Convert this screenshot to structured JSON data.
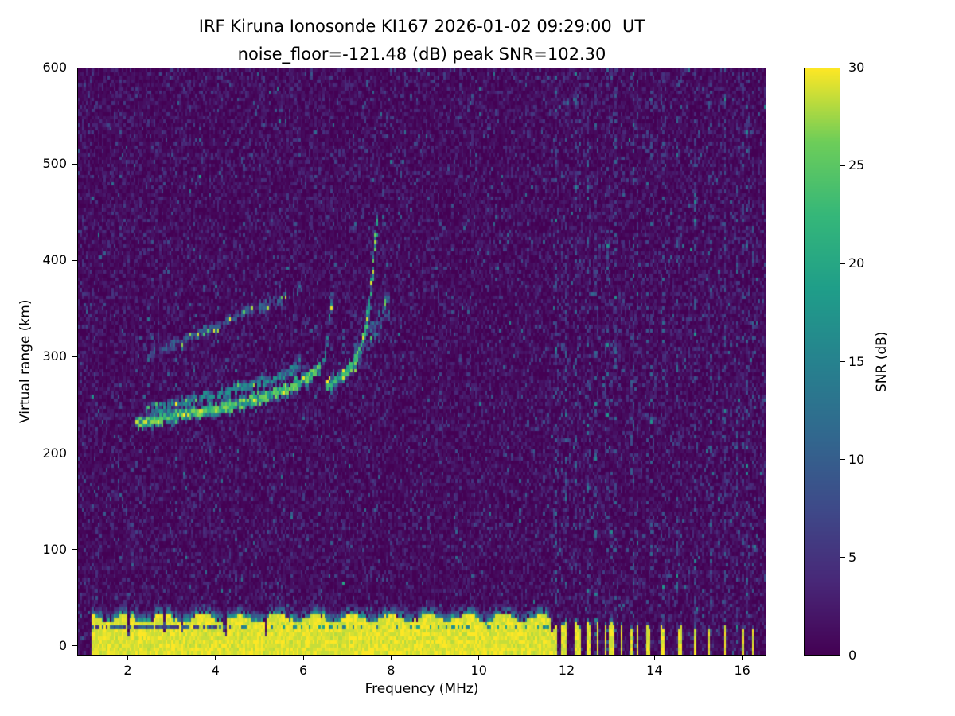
{
  "chart_data": {
    "type": "heatmap",
    "title_line1": "IRF Kiruna Ionosonde KI167 2026-01-02 09:29:00  UT",
    "title_line2": "noise_floor=-121.48 (dB) peak SNR=102.30",
    "station": "IRF Kiruna Ionosonde KI167",
    "timestamp_ut": "2026-01-02 09:29:00",
    "noise_floor_db": -121.48,
    "peak_snr_db": 102.3,
    "xlabel": "Frequency (MHz)",
    "ylabel": "Virtual range (km)",
    "xlim": [
      0.85,
      16.55
    ],
    "ylim": [
      -10,
      600
    ],
    "xticks": [
      2,
      4,
      6,
      8,
      10,
      12,
      14,
      16
    ],
    "yticks": [
      0,
      100,
      200,
      300,
      400,
      500,
      600
    ],
    "grid": false,
    "colorbar": {
      "label": "SNR (dB)",
      "min": 0,
      "max": 30,
      "ticks": [
        0,
        5,
        10,
        15,
        20,
        25,
        30
      ],
      "colormap": "viridis"
    },
    "features": {
      "background_noise_mean_db": 1.7,
      "ground_echo": {
        "snr_db": 30,
        "top_km": 30,
        "band_freq_mhz": [
          1.15,
          11.65
        ],
        "comb_freq_mhz": [
          11.65,
          13.25
        ],
        "sparse_stripes_mhz": [
          13.45,
          13.6,
          13.85,
          14.15,
          14.55,
          14.9,
          15.25,
          15.6,
          16.0,
          16.25
        ]
      },
      "rfi_speckle_mhz": [
        11.75,
        11.95,
        12.2,
        12.45,
        12.65,
        12.9,
        13.1,
        13.5,
        13.9,
        14.2,
        14.5,
        14.9,
        15.3,
        15.6,
        15.85,
        16.1
      ],
      "echo_traces": [
        {
          "name": "F-region main trace",
          "snr_db": 18,
          "density": 0.95,
          "spread_km": 6,
          "points": [
            [
              2.15,
              232
            ],
            [
              2.6,
              236
            ],
            [
              3.2,
              241
            ],
            [
              4.0,
              248
            ],
            [
              4.8,
              257
            ],
            [
              5.6,
              268
            ],
            [
              6.1,
              280
            ],
            [
              6.35,
              292
            ]
          ]
        },
        {
          "name": "F-region upper strand",
          "snr_db": 12,
          "density": 0.55,
          "spread_km": 5,
          "points": [
            [
              2.4,
              248
            ],
            [
              3.2,
              255
            ],
            [
              4.0,
              263
            ],
            [
              4.8,
              273
            ],
            [
              5.5,
              283
            ],
            [
              5.9,
              293
            ]
          ]
        },
        {
          "name": "F1 cusp",
          "snr_db": 12,
          "density": 0.5,
          "spread_km": 6,
          "points": [
            [
              6.45,
              295
            ],
            [
              6.55,
              325
            ],
            [
              6.62,
              362
            ]
          ]
        },
        {
          "name": "F2 lower branch",
          "snr_db": 16,
          "density": 0.85,
          "spread_km": 6,
          "points": [
            [
              6.5,
              272
            ],
            [
              6.9,
              284
            ],
            [
              7.15,
              298
            ],
            [
              7.3,
              312
            ]
          ]
        },
        {
          "name": "F2 cusp",
          "snr_db": 15,
          "density": 0.8,
          "spread_km": 7,
          "points": [
            [
              7.32,
              316
            ],
            [
              7.45,
              345
            ],
            [
              7.55,
              385
            ],
            [
              7.62,
              424
            ],
            [
              7.66,
              445
            ]
          ]
        },
        {
          "name": "second reflection faint trace",
          "snr_db": 8,
          "density": 0.4,
          "spread_km": 5,
          "points": [
            [
              2.4,
              302
            ],
            [
              3.2,
              318
            ],
            [
              4.0,
              334
            ],
            [
              4.8,
              350
            ],
            [
              5.5,
              363
            ],
            [
              5.95,
              373
            ]
          ]
        },
        {
          "name": "cusp spread cloud",
          "snr_db": 9,
          "density": 0.5,
          "spread_km": 22,
          "points": [
            [
              7.1,
              300
            ],
            [
              7.5,
              330
            ],
            [
              7.95,
              355
            ]
          ]
        }
      ]
    }
  }
}
